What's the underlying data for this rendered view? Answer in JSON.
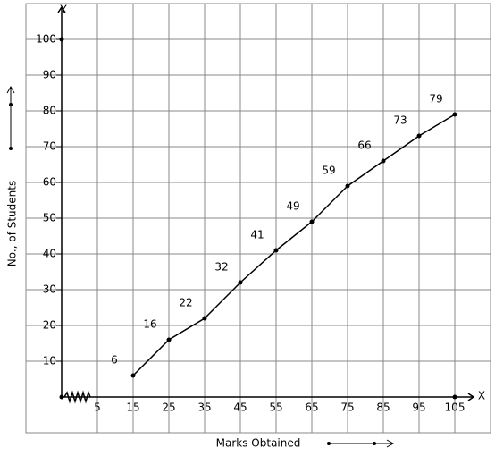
{
  "chart_data": {
    "type": "line",
    "x_label": "Marks Obtained",
    "y_label": "No., of Students",
    "x_axis_name": "X",
    "y_axis_name": "Y",
    "x": [
      15,
      25,
      35,
      45,
      55,
      65,
      75,
      85,
      95,
      105
    ],
    "values": [
      6,
      16,
      22,
      32,
      41,
      49,
      59,
      66,
      73,
      79
    ],
    "color": "#000000",
    "xlim": [
      -15,
      115
    ],
    "ylim": [
      -10,
      110
    ],
    "xticks": [
      5,
      15,
      25,
      35,
      45,
      55,
      65,
      75,
      85,
      95,
      105
    ],
    "yticks": [
      10,
      20,
      30,
      40,
      50,
      60,
      70,
      80,
      90,
      100
    ],
    "grid": true
  }
}
